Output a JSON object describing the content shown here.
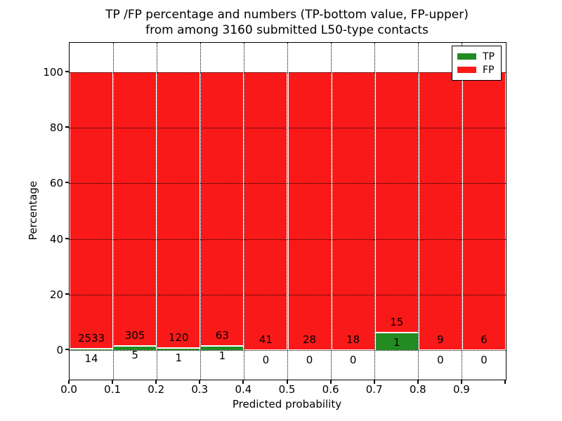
{
  "title": {
    "line1": "TP /FP percentage and numbers (TP-bottom value, FP-upper)",
    "line2": "from among 3160 submitted L50-type contacts"
  },
  "legend": {
    "position": "upper right",
    "items": [
      {
        "label": "TP",
        "color": "#228b22"
      },
      {
        "label": "FP",
        "color": "#fa1919"
      }
    ]
  },
  "chart_data": {
    "type": "bar",
    "stacked": true,
    "title": "TP /FP percentage and numbers (TP-bottom value, FP-upper)\nfrom among 3160 submitted L50-type contacts",
    "xlabel": "Predicted probability",
    "ylabel": "Percentage",
    "x_tick_labels": [
      "0.0",
      "0.1",
      "0.2",
      "0.3",
      "0.4",
      "0.5",
      "0.6",
      "0.7",
      "0.8",
      "0.9"
    ],
    "y_ticks": [
      0,
      20,
      40,
      60,
      80,
      100
    ],
    "xlim": [
      0.0,
      1.0
    ],
    "ylim": [
      -10.6,
      110.6
    ],
    "grid": true,
    "bar_total_percent": 100,
    "total_contacts": 3160,
    "bin_width": 0.1,
    "bins": [
      {
        "range": [
          0.0,
          0.1
        ],
        "tp": 14,
        "fp": 2533
      },
      {
        "range": [
          0.1,
          0.2
        ],
        "tp": 5,
        "fp": 305
      },
      {
        "range": [
          0.2,
          0.3
        ],
        "tp": 1,
        "fp": 120
      },
      {
        "range": [
          0.3,
          0.4
        ],
        "tp": 1,
        "fp": 63
      },
      {
        "range": [
          0.4,
          0.5
        ],
        "tp": 0,
        "fp": 41
      },
      {
        "range": [
          0.5,
          0.6
        ],
        "tp": 0,
        "fp": 28
      },
      {
        "range": [
          0.6,
          0.7
        ],
        "tp": 0,
        "fp": 18
      },
      {
        "range": [
          0.7,
          0.8
        ],
        "tp": 1,
        "fp": 15
      },
      {
        "range": [
          0.8,
          0.9
        ],
        "tp": 0,
        "fp": 9
      },
      {
        "range": [
          0.9,
          1.0
        ],
        "tp": 0,
        "fp": 6
      }
    ],
    "series": [
      {
        "name": "TP",
        "color": "#228b22",
        "note": "percentage of bin, bottom stack"
      },
      {
        "name": "FP",
        "color": "#fa1919",
        "note": "percentage of bin, upper stack"
      }
    ]
  }
}
